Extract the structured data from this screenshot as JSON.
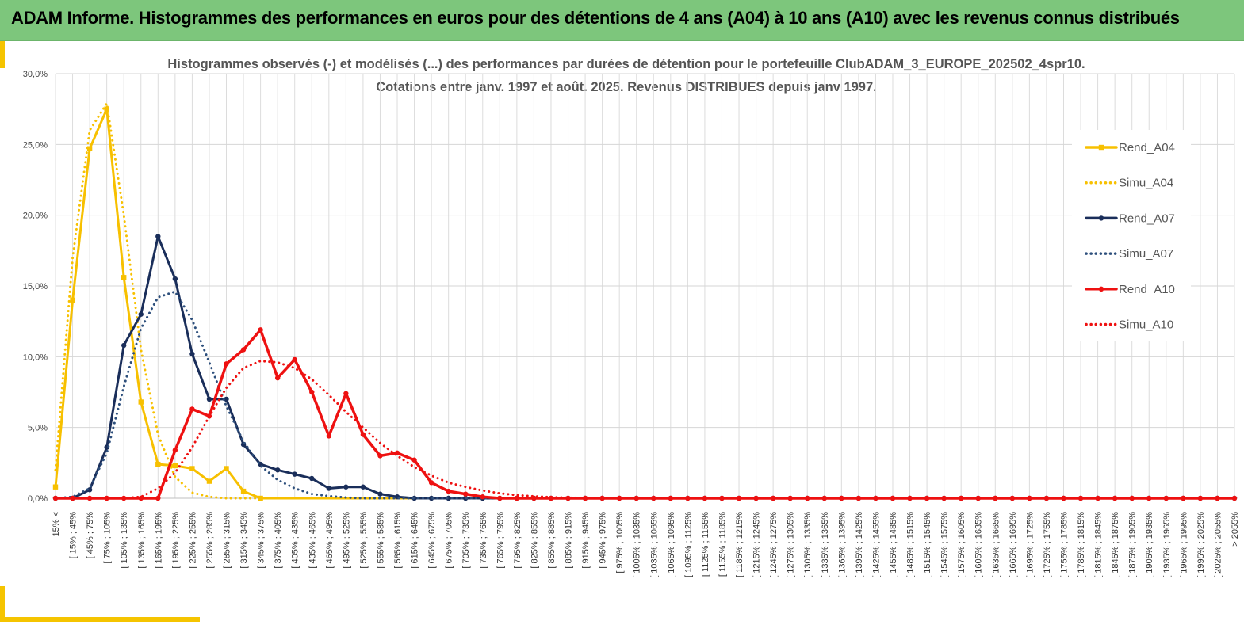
{
  "banner": {
    "title": "ADAM Informe. Histogrammes des performances en euros pour des détentions de 4 ans (A04) à 10 ans (A10) avec les revenus connus distribués"
  },
  "colors": {
    "banner": "#7dc67c",
    "accent": "#f5c400",
    "A04": "#f7c000",
    "A07": "#1a2e5a",
    "A07_simu": "#2d4f7c",
    "A10": "#ee1111"
  },
  "chart_data": {
    "type": "line",
    "title": "Histogrammes observés (-) et modélisés (...) des performances par durées de détention pour le portefeuille ClubADAM_3_EUROPE_202502_4spr10.",
    "subtitle": "Cotations entre janv. 1997 et août. 2025. Revenus DISTRIBUES depuis janv 1997.",
    "ylim": [
      0,
      30
    ],
    "y_ticks": [
      "0,0%",
      "5,0%",
      "10,0%",
      "15,0%",
      "20,0%",
      "25,0%",
      "30,0%"
    ],
    "grid": true,
    "legend_position": "right",
    "categories": [
      "15% <",
      "[ 15% ; 45%",
      "[ 45% ; 75%",
      "[ 75% ; 105%",
      "[ 105% ; 135%",
      "[ 135% ; 165%",
      "[ 165% ; 195%",
      "[ 195% ; 225%",
      "[ 225% ; 255%",
      "[ 255% ; 285%",
      "[ 285% ; 315%",
      "[ 315% ; 345%",
      "[ 345% ; 375%",
      "[ 375% ; 405%",
      "[ 405% ; 435%",
      "[ 435% ; 465%",
      "[ 465% ; 495%",
      "[ 495% ; 525%",
      "[ 525% ; 555%",
      "[ 555% ; 585%",
      "[ 585% ; 615%",
      "[ 615% ; 645%",
      "[ 645% ; 675%",
      "[ 675% ; 705%",
      "[ 705% ; 735%",
      "[ 735% ; 765%",
      "[ 765% ; 795%",
      "[ 795% ; 825%",
      "[ 825% ; 855%",
      "[ 855% ; 885%",
      "[ 885% ; 915%",
      "[ 915% ; 945%",
      "[ 945% ; 975%",
      "[ 975% ; 1005%",
      "[ 1005% ; 1035%",
      "[ 1035% ; 1065%",
      "[ 1065% ; 1095%",
      "[ 1095% ; 1125%",
      "[ 1125% ; 1155%",
      "[ 1155% ; 1185%",
      "[ 1185% ; 1215%",
      "[ 1215% ; 1245%",
      "[ 1245% ; 1275%",
      "[ 1275% ; 1305%",
      "[ 1305% ; 1335%",
      "[ 1335% ; 1365%",
      "[ 1365% ; 1395%",
      "[ 1395% ; 1425%",
      "[ 1425% ; 1455%",
      "[ 1455% ; 1485%",
      "[ 1485% ; 1515%",
      "[ 1515% ; 1545%",
      "[ 1545% ; 1575%",
      "[ 1575% ; 1605%",
      "[ 1605% ; 1635%",
      "[ 1635% ; 1665%",
      "[ 1665% ; 1695%",
      "[ 1695% ; 1725%",
      "[ 1725% ; 1755%",
      "[ 1755% ; 1785%",
      "[ 1785% ; 1815%",
      "[ 1815% ; 1845%",
      "[ 1845% ; 1875%",
      "[ 1875% ; 1905%",
      "[ 1905% ; 1935%",
      "[ 1935% ; 1965%",
      "[ 1965% ; 1995%",
      "[ 1995% ; 2025%",
      "[ 2025% ; 2055%",
      "> 2055%"
    ],
    "series": [
      {
        "name": "Rend_A04",
        "style": "solid",
        "marker": "square",
        "color": "#f7c000",
        "values": [
          0.8,
          14.0,
          24.7,
          27.5,
          15.6,
          6.8,
          2.4,
          2.3,
          2.1,
          1.2,
          2.1,
          0.5,
          0,
          0,
          0,
          0,
          0,
          0,
          0,
          0,
          0,
          0,
          0,
          0,
          0,
          0,
          0,
          0,
          0,
          0,
          0,
          0,
          0,
          0,
          0,
          0,
          0,
          0,
          0,
          0,
          0,
          0,
          0,
          0,
          0,
          0,
          0,
          0,
          0,
          0,
          0,
          0,
          0,
          0,
          0,
          0,
          0,
          0,
          0,
          0,
          0,
          0,
          0,
          0,
          0,
          0,
          0,
          0,
          0,
          0
        ]
      },
      {
        "name": "Simu_A04",
        "style": "dotted",
        "marker": "none",
        "color": "#f7c000",
        "values": [
          2.0,
          17.0,
          26.0,
          27.9,
          20.0,
          10.5,
          4.5,
          1.5,
          0.4,
          0.1,
          0,
          0,
          0,
          0,
          0,
          0,
          0,
          0,
          0,
          0,
          0,
          0,
          0,
          0,
          0,
          0,
          0,
          0,
          0,
          0,
          0,
          0,
          0,
          0,
          0,
          0,
          0,
          0,
          0,
          0,
          0,
          0,
          0,
          0,
          0,
          0,
          0,
          0,
          0,
          0,
          0,
          0,
          0,
          0,
          0,
          0,
          0,
          0,
          0,
          0,
          0,
          0,
          0,
          0,
          0,
          0,
          0,
          0,
          0,
          0
        ]
      },
      {
        "name": "Rend_A07",
        "style": "solid",
        "marker": "circle",
        "color": "#1a2e5a",
        "values": [
          0,
          0,
          0.6,
          3.6,
          10.8,
          13.0,
          18.5,
          15.5,
          10.2,
          7.0,
          7.0,
          3.8,
          2.4,
          2.0,
          1.7,
          1.4,
          0.7,
          0.8,
          0.8,
          0.3,
          0.1,
          0,
          0,
          0,
          0,
          0,
          0,
          0,
          0,
          0,
          0,
          0,
          0,
          0,
          0,
          0,
          0,
          0,
          0,
          0,
          0,
          0,
          0,
          0,
          0,
          0,
          0,
          0,
          0,
          0,
          0,
          0,
          0,
          0,
          0,
          0,
          0,
          0,
          0,
          0,
          0,
          0,
          0,
          0,
          0,
          0,
          0,
          0,
          0,
          0
        ]
      },
      {
        "name": "Simu_A07",
        "style": "dotted",
        "marker": "none",
        "color": "#2d4f7c",
        "values": [
          0,
          0.1,
          0.7,
          3.2,
          7.9,
          12.0,
          14.2,
          14.6,
          12.6,
          9.6,
          6.5,
          4.0,
          2.3,
          1.3,
          0.7,
          0.3,
          0.15,
          0.05,
          0,
          0,
          0,
          0,
          0,
          0,
          0,
          0,
          0,
          0,
          0,
          0,
          0,
          0,
          0,
          0,
          0,
          0,
          0,
          0,
          0,
          0,
          0,
          0,
          0,
          0,
          0,
          0,
          0,
          0,
          0,
          0,
          0,
          0,
          0,
          0,
          0,
          0,
          0,
          0,
          0,
          0,
          0,
          0,
          0,
          0,
          0,
          0,
          0,
          0,
          0,
          0
        ]
      },
      {
        "name": "Rend_A10",
        "style": "solid",
        "marker": "circle",
        "color": "#ee1111",
        "values": [
          0,
          0,
          0,
          0,
          0,
          0,
          0,
          3.4,
          6.3,
          5.8,
          9.5,
          10.5,
          11.9,
          8.5,
          9.8,
          7.5,
          4.4,
          7.4,
          4.5,
          3.0,
          3.2,
          2.7,
          1.1,
          0.5,
          0.3,
          0.1,
          0,
          0,
          0,
          0,
          0,
          0,
          0,
          0,
          0,
          0,
          0,
          0,
          0,
          0,
          0,
          0,
          0,
          0,
          0,
          0,
          0,
          0,
          0,
          0,
          0,
          0,
          0,
          0,
          0,
          0,
          0,
          0,
          0,
          0,
          0,
          0,
          0,
          0,
          0,
          0,
          0,
          0,
          0,
          0
        ]
      },
      {
        "name": "Simu_A10",
        "style": "dotted",
        "marker": "none",
        "color": "#ee1111",
        "values": [
          0,
          0,
          0,
          0,
          0,
          0.1,
          0.7,
          1.8,
          3.6,
          5.8,
          7.8,
          9.2,
          9.7,
          9.6,
          9.2,
          8.4,
          7.3,
          6.1,
          5.0,
          3.9,
          3.0,
          2.2,
          1.6,
          1.1,
          0.8,
          0.55,
          0.35,
          0.22,
          0.14,
          0.08,
          0.04,
          0.02,
          0,
          0,
          0,
          0,
          0,
          0,
          0,
          0,
          0,
          0,
          0,
          0,
          0,
          0,
          0,
          0,
          0,
          0,
          0,
          0,
          0,
          0,
          0,
          0,
          0,
          0,
          0,
          0,
          0,
          0,
          0,
          0,
          0,
          0,
          0,
          0,
          0,
          0
        ]
      }
    ]
  }
}
